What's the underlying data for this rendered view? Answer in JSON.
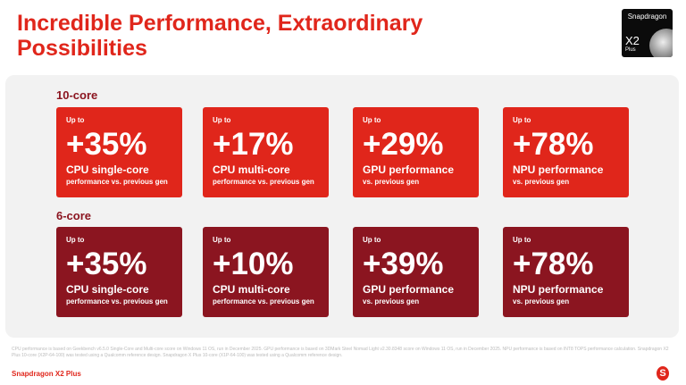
{
  "title": "Incredible Performance, Extraordinary Possibilities",
  "logo": {
    "brand": "Snapdragon",
    "model": "X2",
    "tier": "Plus"
  },
  "colors": {
    "accent": "#e0261b",
    "dark": "#8b1520",
    "panel": "#f2f2f2"
  },
  "sections": [
    {
      "label": "10-core",
      "cards": [
        {
          "up": "Up to",
          "value": "+35%",
          "label": "CPU single-core",
          "sub": "performance vs. previous gen"
        },
        {
          "up": "Up to",
          "value": "+17%",
          "label": "CPU multi-core",
          "sub": "performance vs. previous gen"
        },
        {
          "up": "Up to",
          "value": "+29%",
          "label": "GPU performance",
          "sub": "vs. previous gen"
        },
        {
          "up": "Up to",
          "value": "+78%",
          "label": "NPU performance",
          "sub": "vs. previous gen"
        }
      ]
    },
    {
      "label": "6-core",
      "cards": [
        {
          "up": "Up to",
          "value": "+35%",
          "label": "CPU single-core",
          "sub": "performance vs. previous gen"
        },
        {
          "up": "Up to",
          "value": "+10%",
          "label": "CPU multi-core",
          "sub": "performance vs. previous gen"
        },
        {
          "up": "Up to",
          "value": "+39%",
          "label": "GPU performance",
          "sub": "vs. previous gen"
        },
        {
          "up": "Up to",
          "value": "+78%",
          "label": "NPU performance",
          "sub": "vs. previous gen"
        }
      ]
    }
  ],
  "footnote": "CPU performance is based on Geekbench v6.5.0 Single-Core and Multi-core score on Windows 11 OS, run in December 2025. GPU performance is based on 3DMark Steel Nomad Light v2.30.8348 score on Windows 11 OS, run in December 2025. NPU performance is based on INT8 TOPS performance calculation. Snapdragon X2 Plus 10-core (X2P-64-100) was tested using a Qualcomm reference design. Snapdragon X Plus 10-core (X1P-64-100) was tested using a Qualcomm reference design.",
  "footer_brand": "Snapdragon X2 Plus"
}
